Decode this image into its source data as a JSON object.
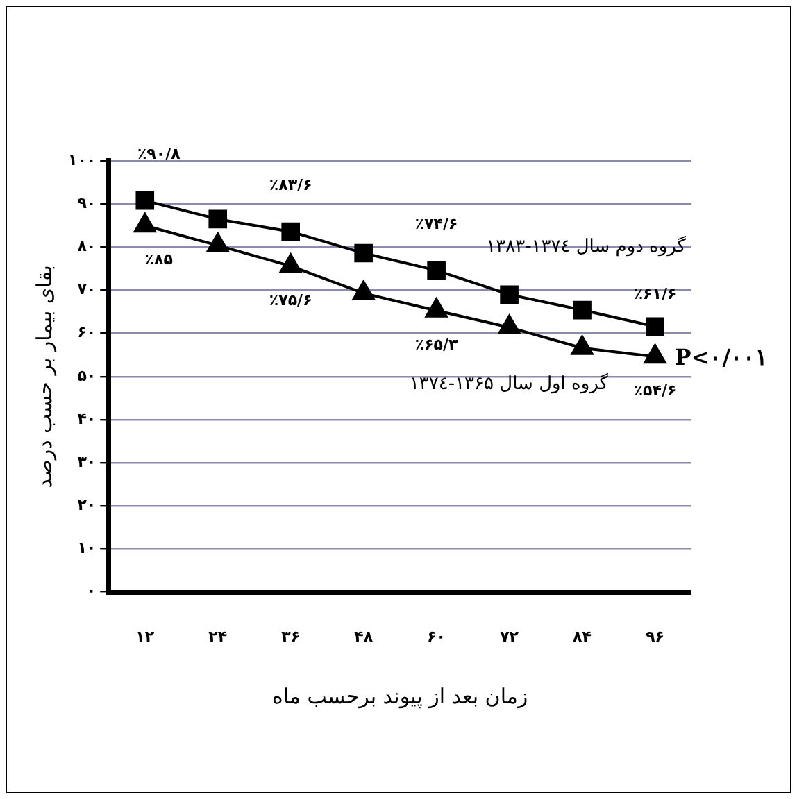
{
  "chart_data": {
    "type": "line",
    "xlabel": "زمان بعد از پیوند برحسب ماه",
    "ylabel": "بقای بیمار بر حسب درصد",
    "categories": [
      "۱۲",
      "۲۴",
      "۳۶",
      "۴۸",
      "۶۰",
      "۷۲",
      "۸۴",
      "۹۶"
    ],
    "series": [
      {
        "name": "گروه دوم سال ۱۳۷٤-۱۳۸۳",
        "color": "#000000",
        "marker": "square",
        "values": [
          90.8,
          86.5,
          83.6,
          78.6,
          74.6,
          69,
          65.4,
          61.6
        ],
        "value_labels": [
          "٪۹۰/۸",
          null,
          "٪۸۳/۶",
          null,
          "٪۷۴/۶",
          null,
          null,
          "٪۶۱/۶"
        ]
      },
      {
        "name": "گروه اول سال ۱۳۶۵-۱۳۷٤",
        "color": "#000000",
        "marker": "triangle",
        "values": [
          85,
          80.4,
          75.6,
          69.3,
          65.3,
          61.4,
          56.6,
          54.6
        ],
        "value_labels": [
          "٪۸۵",
          null,
          "٪۷۵/۶",
          null,
          "٪۶۵/۳",
          null,
          null,
          "٪۵۴/۶"
        ]
      }
    ],
    "ylim": [
      0,
      100
    ],
    "yticks": [
      {
        "value": 0,
        "label": "۰"
      },
      {
        "value": 10,
        "label": "۱۰"
      },
      {
        "value": 20,
        "label": "۲۰"
      },
      {
        "value": 30,
        "label": "۳۰"
      },
      {
        "value": 40,
        "label": "۴۰"
      },
      {
        "value": 50,
        "label": "۵۰"
      },
      {
        "value": 60,
        "label": "۶۰"
      },
      {
        "value": 70,
        "label": "۷۰"
      },
      {
        "value": 80,
        "label": "۸۰"
      },
      {
        "value": 90,
        "label": "۹۰"
      },
      {
        "value": 100,
        "label": "۱۰۰"
      }
    ],
    "grid": "y",
    "legend": false,
    "line_style": "solid",
    "annotations": [
      {
        "text": "P<۰/۰۰۱",
        "x": "۹۶",
        "y": 54.6
      }
    ]
  }
}
